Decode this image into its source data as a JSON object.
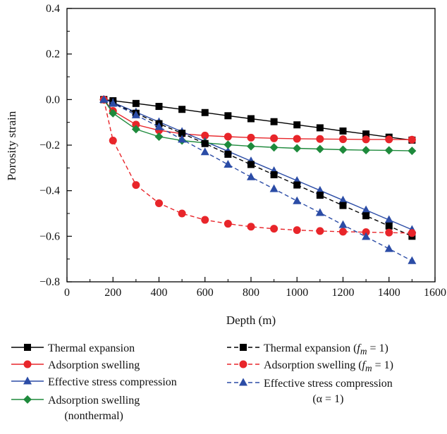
{
  "chart_data": {
    "type": "line",
    "xlabel": "Depth (m)",
    "ylabel": "Porosity strain",
    "xlim": [
      0,
      1600
    ],
    "ylim": [
      -0.8,
      0.4
    ],
    "xticks": [
      0,
      200,
      400,
      600,
      800,
      1000,
      1200,
      1400,
      1600
    ],
    "xtick_labels": [
      "0",
      "200",
      "400",
      "600",
      "800",
      "1000",
      "1200",
      "1400",
      "1600"
    ],
    "yticks": [
      -0.8,
      -0.6,
      -0.4,
      -0.2,
      0.0,
      0.2,
      0.4
    ],
    "ytick_labels": [
      "−0.8",
      "−0.6",
      "−0.4",
      "−0.2",
      "0.0",
      "0.2",
      "0.4"
    ],
    "grid": false,
    "legend_position": "bottom",
    "series": [
      {
        "name": "Thermal expansion",
        "color": "#000000",
        "marker": "square",
        "dashed": false,
        "x": [
          160,
          200,
          300,
          400,
          500,
          600,
          700,
          800,
          900,
          1000,
          1100,
          1200,
          1300,
          1400,
          1500
        ],
        "y": [
          0.0,
          -0.005,
          -0.017,
          -0.03,
          -0.043,
          -0.057,
          -0.071,
          -0.084,
          -0.097,
          -0.111,
          -0.124,
          -0.138,
          -0.151,
          -0.165,
          -0.178
        ]
      },
      {
        "name": "Adsorption swelling",
        "color": "#e8252a",
        "marker": "circle",
        "dashed": false,
        "x": [
          160,
          200,
          300,
          400,
          500,
          600,
          700,
          800,
          900,
          1000,
          1100,
          1200,
          1300,
          1400,
          1500
        ],
        "y": [
          0.0,
          -0.05,
          -0.11,
          -0.135,
          -0.15,
          -0.158,
          -0.163,
          -0.167,
          -0.17,
          -0.172,
          -0.173,
          -0.174,
          -0.175,
          -0.175,
          -0.176
        ]
      },
      {
        "name": "Effective stress compression",
        "color": "#2b4ca6",
        "marker": "triangle",
        "dashed": false,
        "x": [
          160,
          200,
          300,
          400,
          500,
          600,
          700,
          800,
          900,
          1000,
          1100,
          1200,
          1300,
          1400,
          1500
        ],
        "y": [
          0.0,
          -0.013,
          -0.055,
          -0.098,
          -0.141,
          -0.184,
          -0.227,
          -0.27,
          -0.313,
          -0.356,
          -0.399,
          -0.442,
          -0.485,
          -0.528,
          -0.571
        ]
      },
      {
        "name": "Adsorption swelling (nonthermal)",
        "color": "#1e8a3c",
        "marker": "diamond",
        "dashed": false,
        "x": [
          160,
          200,
          300,
          400,
          500,
          600,
          700,
          800,
          900,
          1000,
          1100,
          1200,
          1300,
          1400,
          1500
        ],
        "y": [
          0.0,
          -0.06,
          -0.13,
          -0.163,
          -0.18,
          -0.19,
          -0.198,
          -0.205,
          -0.21,
          -0.214,
          -0.217,
          -0.22,
          -0.222,
          -0.223,
          -0.225
        ]
      },
      {
        "name": "Thermal expansion (fm = 1)",
        "color": "#000000",
        "marker": "square",
        "dashed": true,
        "x": [
          160,
          200,
          300,
          400,
          500,
          600,
          700,
          800,
          900,
          1000,
          1100,
          1200,
          1300,
          1400,
          1500
        ],
        "y": [
          0.0,
          -0.016,
          -0.06,
          -0.106,
          -0.148,
          -0.193,
          -0.24,
          -0.285,
          -0.33,
          -0.375,
          -0.42,
          -0.465,
          -0.51,
          -0.555,
          -0.6
        ]
      },
      {
        "name": "Adsorption swelling (fm = 1)",
        "color": "#e8252a",
        "marker": "circle",
        "dashed": true,
        "x": [
          160,
          200,
          300,
          400,
          500,
          600,
          700,
          800,
          900,
          1000,
          1100,
          1200,
          1300,
          1400,
          1500
        ],
        "y": [
          0.0,
          -0.18,
          -0.375,
          -0.455,
          -0.5,
          -0.528,
          -0.545,
          -0.558,
          -0.567,
          -0.573,
          -0.577,
          -0.58,
          -0.582,
          -0.584,
          -0.586
        ]
      },
      {
        "name": "Effective stress compression (α = 1)",
        "color": "#2b4ca6",
        "marker": "triangle",
        "dashed": true,
        "x": [
          160,
          200,
          300,
          400,
          500,
          600,
          700,
          800,
          900,
          1000,
          1100,
          1200,
          1300,
          1400,
          1500
        ],
        "y": [
          0.0,
          -0.017,
          -0.068,
          -0.12,
          -0.175,
          -0.23,
          -0.285,
          -0.34,
          -0.392,
          -0.445,
          -0.497,
          -0.55,
          -0.602,
          -0.655,
          -0.708
        ]
      }
    ]
  },
  "legend": {
    "col1": [
      {
        "label": "Thermal expansion"
      },
      {
        "label": "Adsorption swelling"
      },
      {
        "label": "Effective stress compression"
      },
      {
        "label": "Adsorption swelling",
        "label2": "(nonthermal)"
      }
    ],
    "col2": [
      {
        "label": "Thermal expansion (",
        "sym": "f",
        "sub": "m",
        "tail": " = 1)"
      },
      {
        "label": "Adsorption swelling (",
        "sym": "f",
        "sub": "m",
        "tail": " = 1)"
      },
      {
        "label": "Effective stress compression",
        "label2": "(α = 1)"
      }
    ]
  }
}
